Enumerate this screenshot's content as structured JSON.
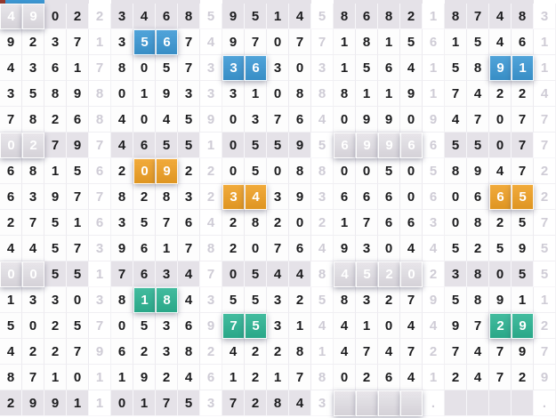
{
  "colors": {
    "shaded_bg": "#e5e2e8",
    "white_bg": "#fdfdfd",
    "digit_text": "#1c1c1e",
    "sep_text": "#cfccd6",
    "top_fragment": "#97392e",
    "highlights": {
      "blue": "#3d99d5",
      "royal": "#2347cd",
      "amber": "#f0a125",
      "rust": "#c55108",
      "teal": "#2db493",
      "green": "#1b9a4a"
    }
  },
  "top_strip": {
    "blue_cols": [
      1,
      2
    ]
  },
  "grid": {
    "columns": 25,
    "separator_every": 5,
    "shaded_rows": [
      1,
      6,
      11,
      16
    ],
    "rows": [
      "4902234685951458682187483",
      "9237135674970771815615461",
      "4361780573363031564158911",
      "3589801933310888119174224",
      "7826840459037640990947077",
      "0279746551055956996655077",
      "6815620922050880050589472",
      "6397782832343936660606652",
      "2751635764282021766308257",
      "4457396178207649304452595",
      "0055176347054484520238055",
      "1330381843553258327958911",
      "5025705369753144104497292",
      "4227962382422814747274797",
      "8710119246121780264124729",
      "299110175372843    .    ."
    ],
    "highlights": [
      {
        "row": 1,
        "cols": [
          1,
          2
        ],
        "color": "blue"
      },
      {
        "row": 2,
        "cols": [
          7,
          8
        ],
        "color": "blue"
      },
      {
        "row": 3,
        "cols": [
          11,
          12
        ],
        "color": "blue"
      },
      {
        "row": 3,
        "cols": [
          23,
          24
        ],
        "color": "blue"
      },
      {
        "row": 6,
        "cols": [
          1,
          2
        ],
        "color": "amber"
      },
      {
        "row": 6,
        "cols": [
          16,
          17,
          18,
          19
        ],
        "color": "royal"
      },
      {
        "row": 7,
        "cols": [
          7,
          8
        ],
        "color": "amber"
      },
      {
        "row": 8,
        "cols": [
          11,
          12
        ],
        "color": "amber"
      },
      {
        "row": 8,
        "cols": [
          23,
          24
        ],
        "color": "amber"
      },
      {
        "row": 11,
        "cols": [
          1,
          2
        ],
        "color": "teal"
      },
      {
        "row": 11,
        "cols": [
          16,
          17,
          18,
          19
        ],
        "color": "rust"
      },
      {
        "row": 12,
        "cols": [
          7,
          8
        ],
        "color": "teal"
      },
      {
        "row": 13,
        "cols": [
          11,
          12
        ],
        "color": "teal"
      },
      {
        "row": 13,
        "cols": [
          23,
          24
        ],
        "color": "teal"
      },
      {
        "row": 16,
        "cols": [
          16,
          17,
          18,
          19
        ],
        "color": "green"
      }
    ]
  }
}
